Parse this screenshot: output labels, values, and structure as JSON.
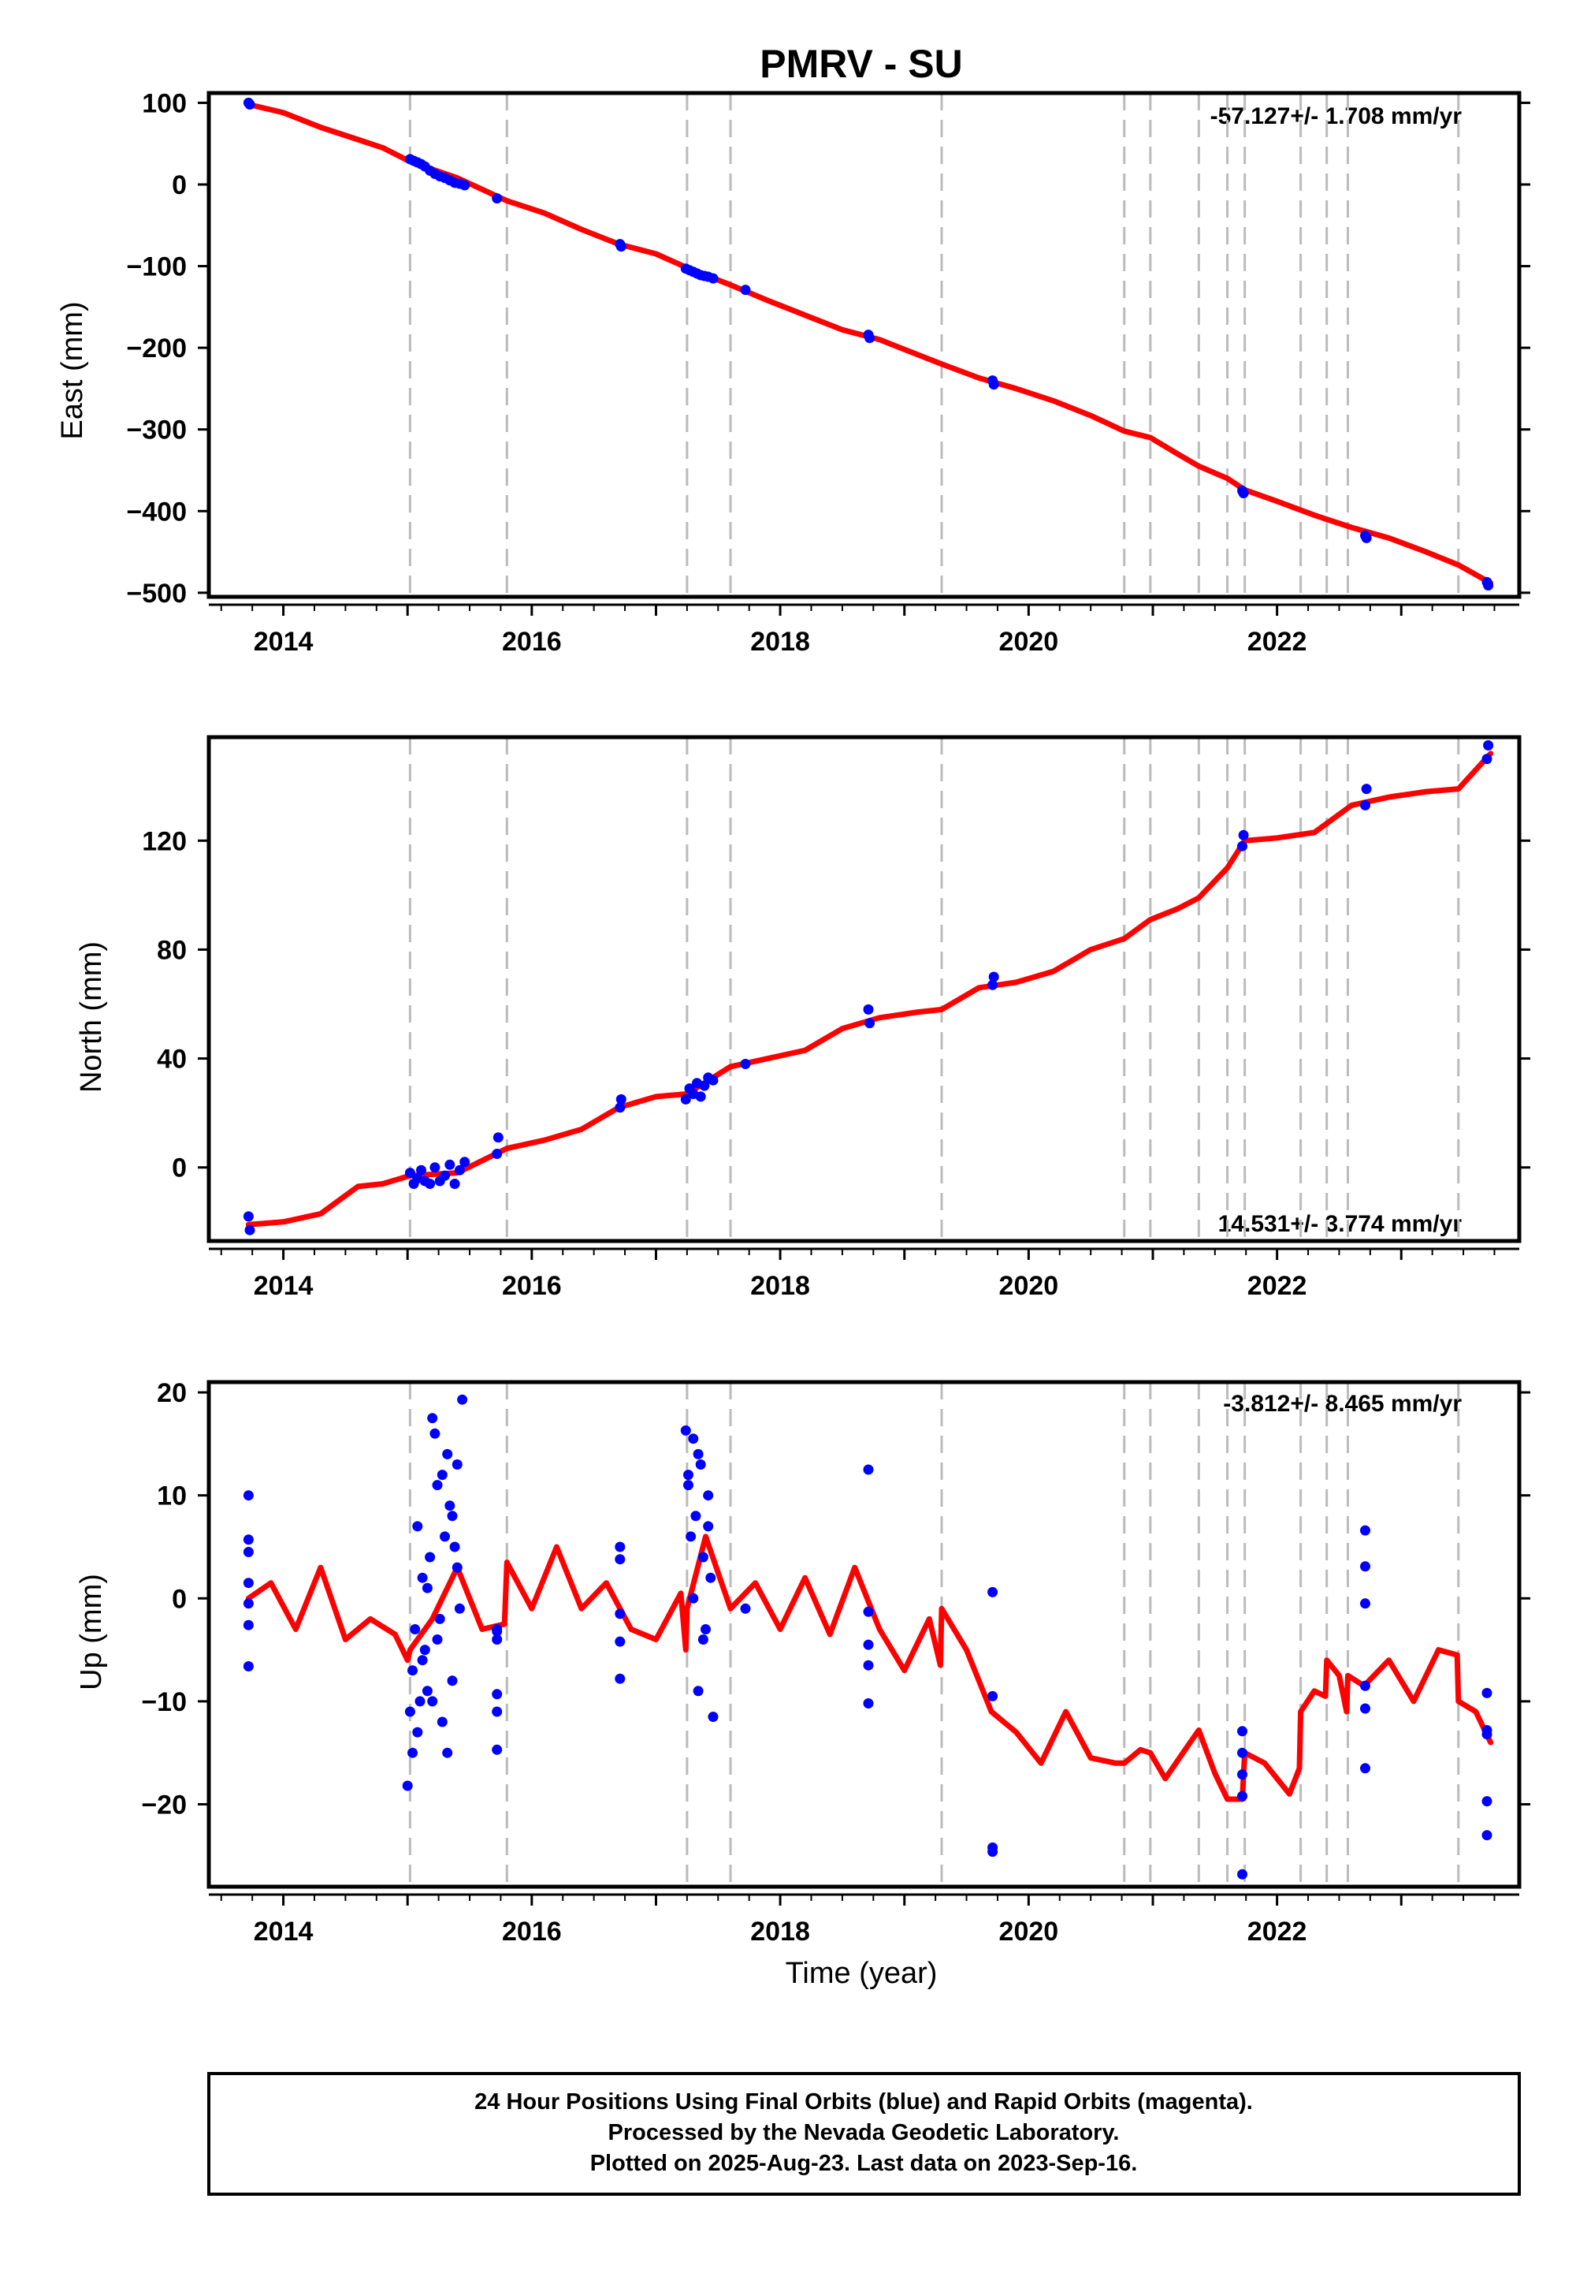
{
  "title": "PMRV - SU",
  "colors": {
    "final_orbits": "#0000ff",
    "model_fit": "#ff0000",
    "equipment_change": "#bbbbbb",
    "frame": "#000000"
  },
  "footer": {
    "line1": "24 Hour Positions Using Final Orbits (blue) and Rapid Orbits (magenta).",
    "line2": "Processed by the Nevada Geodetic Laboratory.",
    "line3": "Plotted on 2025-Aug-23. Last data on 2023-Sep-16."
  },
  "chart_data": [
    {
      "type": "scatter",
      "panel": "east",
      "ylabel": "East (mm)",
      "xlabel": "",
      "rate_text": "-57.127+/- 1.708 mm/yr",
      "rate_position": "top-right",
      "xlim": [
        2013.4,
        2023.95
      ],
      "ylim": [
        -505,
        112
      ],
      "yticks": [
        100,
        0,
        -100,
        -200,
        -300,
        -400,
        -500
      ],
      "yticklabels": [
        "100",
        "0",
        "−100",
        "−200",
        "−300",
        "−400",
        "−500"
      ],
      "xticks": [
        2014,
        2016,
        2018,
        2020,
        2022
      ],
      "xticklabels": [
        "2014",
        "2016",
        "2018",
        "2020",
        "2022"
      ],
      "event_lines": [
        2015.02,
        2015.8,
        2017.25,
        2017.6,
        2019.3,
        2020.77,
        2020.98,
        2021.37,
        2021.6,
        2021.74,
        2022.19,
        2022.4,
        2022.57,
        2023.46
      ],
      "series": [
        {
          "role": "observations",
          "x": [
            2013.72,
            2013.73,
            2015.02,
            2015.05,
            2015.08,
            2015.11,
            2015.14,
            2015.18,
            2015.22,
            2015.26,
            2015.3,
            2015.34,
            2015.38,
            2015.42,
            2015.46,
            2015.72,
            2016.71,
            2016.72,
            2017.24,
            2017.27,
            2017.3,
            2017.33,
            2017.36,
            2017.39,
            2017.42,
            2017.46,
            2017.72,
            2018.71,
            2018.72,
            2019.71,
            2019.72,
            2021.72,
            2021.73,
            2022.71,
            2022.72,
            2023.69,
            2023.7
          ],
          "y": [
            100,
            98,
            31,
            29,
            27,
            25,
            22,
            17,
            13,
            10,
            8,
            5,
            2,
            1,
            -1,
            -17,
            -73,
            -76,
            -103,
            -105,
            -107,
            -109,
            -111,
            -112,
            -113,
            -115,
            -129,
            -184,
            -188,
            -240,
            -245,
            -375,
            -378,
            -430,
            -433,
            -487,
            -491
          ]
        },
        {
          "role": "model",
          "x": [
            2013.72,
            2014.0,
            2014.3,
            2014.6,
            2014.8,
            2015.02,
            2015.4,
            2015.8,
            2016.1,
            2016.4,
            2016.7,
            2017.0,
            2017.25,
            2017.6,
            2017.9,
            2018.2,
            2018.5,
            2018.8,
            2019.1,
            2019.3,
            2019.6,
            2019.9,
            2020.2,
            2020.5,
            2020.77,
            2020.98,
            2021.2,
            2021.37,
            2021.6,
            2021.74,
            2022.0,
            2022.3,
            2022.6,
            2022.9,
            2023.2,
            2023.46,
            2023.72
          ],
          "y": [
            98,
            88,
            70,
            55,
            45,
            28,
            8,
            -20,
            -35,
            -55,
            -73,
            -85,
            -102,
            -123,
            -142,
            -160,
            -178,
            -190,
            -208,
            -220,
            -237,
            -250,
            -265,
            -283,
            -302,
            -310,
            -330,
            -345,
            -360,
            -374,
            -388,
            -405,
            -420,
            -433,
            -450,
            -466,
            -488
          ]
        }
      ]
    },
    {
      "type": "scatter",
      "panel": "north",
      "ylabel": "North (mm)",
      "xlabel": "",
      "rate_text": "14.531+/- 3.774 mm/yr",
      "rate_position": "bottom-right",
      "xlim": [
        2013.4,
        2023.95
      ],
      "ylim": [
        -27,
        158
      ],
      "yticks": [
        0,
        40,
        80,
        120
      ],
      "yticklabels": [
        "0",
        "40",
        "80",
        "120"
      ],
      "xticks": [
        2014,
        2016,
        2018,
        2020,
        2022
      ],
      "xticklabels": [
        "2014",
        "2016",
        "2018",
        "2020",
        "2022"
      ],
      "event_lines": [
        2015.02,
        2015.8,
        2017.25,
        2017.6,
        2019.3,
        2020.77,
        2020.98,
        2021.37,
        2021.6,
        2021.74,
        2022.19,
        2022.4,
        2022.57,
        2023.46
      ],
      "series": [
        {
          "role": "observations",
          "x": [
            2013.72,
            2013.73,
            2015.02,
            2015.05,
            2015.08,
            2015.11,
            2015.14,
            2015.18,
            2015.22,
            2015.26,
            2015.3,
            2015.34,
            2015.38,
            2015.42,
            2015.46,
            2015.72,
            2015.73,
            2016.71,
            2016.72,
            2017.24,
            2017.27,
            2017.3,
            2017.33,
            2017.36,
            2017.39,
            2017.42,
            2017.46,
            2017.72,
            2018.71,
            2018.72,
            2019.71,
            2019.72,
            2021.72,
            2021.73,
            2022.71,
            2022.72,
            2023.69,
            2023.7
          ],
          "y": [
            -18,
            -23,
            -2,
            -6,
            -4,
            -1,
            -5,
            -6,
            0,
            -5,
            -3,
            1,
            -6,
            -1,
            2,
            5,
            11,
            22,
            25,
            25,
            29,
            27,
            31,
            26,
            30,
            33,
            32,
            38,
            58,
            53,
            67,
            70,
            118,
            122,
            133,
            139,
            150,
            155
          ]
        },
        {
          "role": "model",
          "x": [
            2013.72,
            2014.0,
            2014.3,
            2014.6,
            2014.8,
            2015.02,
            2015.4,
            2015.8,
            2016.1,
            2016.4,
            2016.7,
            2017.0,
            2017.25,
            2017.6,
            2017.9,
            2018.2,
            2018.5,
            2018.8,
            2019.1,
            2019.3,
            2019.6,
            2019.9,
            2020.2,
            2020.5,
            2020.77,
            2020.98,
            2021.2,
            2021.37,
            2021.6,
            2021.74,
            2022.0,
            2022.3,
            2022.6,
            2022.9,
            2023.2,
            2023.46,
            2023.72
          ],
          "y": [
            -21,
            -20,
            -17,
            -7,
            -6,
            -3,
            -2,
            7,
            10,
            14,
            22,
            26,
            27,
            37,
            40,
            43,
            51,
            55,
            57,
            58,
            66,
            68,
            72,
            80,
            84,
            91,
            95,
            99,
            110,
            120,
            121,
            123,
            133,
            136,
            138,
            139,
            152
          ]
        }
      ]
    },
    {
      "type": "scatter",
      "panel": "up",
      "ylabel": "Up (mm)",
      "xlabel": "Time (year)",
      "rate_text": "-3.812+/- 8.465 mm/yr",
      "rate_position": "top-right",
      "xlim": [
        2013.4,
        2023.95
      ],
      "ylim": [
        -28,
        21
      ],
      "yticks": [
        20,
        10,
        0,
        -10,
        -20
      ],
      "yticklabels": [
        "20",
        "10",
        "0",
        "−10",
        "−20"
      ],
      "xticks": [
        2014,
        2016,
        2018,
        2020,
        2022
      ],
      "xticklabels": [
        "2014",
        "2016",
        "2018",
        "2020",
        "2022"
      ],
      "event_lines": [
        2015.02,
        2015.8,
        2017.25,
        2017.6,
        2019.3,
        2020.77,
        2020.98,
        2021.37,
        2021.6,
        2021.74,
        2022.19,
        2022.4,
        2022.57,
        2023.46
      ],
      "series": [
        {
          "role": "observations",
          "x": [
            2013.72,
            2013.72,
            2013.72,
            2013.72,
            2013.72,
            2013.72,
            2013.72,
            2015.0,
            2015.02,
            2015.04,
            2015.06,
            2015.08,
            2015.1,
            2015.12,
            2015.14,
            2015.16,
            2015.18,
            2015.2,
            2015.22,
            2015.24,
            2015.26,
            2015.28,
            2015.3,
            2015.32,
            2015.34,
            2015.36,
            2015.38,
            2015.4,
            2015.42,
            2015.44,
            2015.04,
            2015.08,
            2015.12,
            2015.16,
            2015.2,
            2015.24,
            2015.28,
            2015.32,
            2015.36,
            2015.4,
            2015.72,
            2015.72,
            2015.72,
            2015.72,
            2015.72,
            2015.72,
            2016.71,
            2016.71,
            2016.71,
            2016.71,
            2016.71,
            2017.24,
            2017.26,
            2017.28,
            2017.3,
            2017.32,
            2017.34,
            2017.36,
            2017.38,
            2017.4,
            2017.42,
            2017.44,
            2017.46,
            2017.26,
            2017.3,
            2017.34,
            2017.38,
            2017.42,
            2017.72,
            2018.71,
            2018.71,
            2018.71,
            2018.71,
            2018.71,
            2019.71,
            2019.71,
            2019.71,
            2019.71,
            2021.72,
            2021.72,
            2021.72,
            2021.72,
            2021.72,
            2022.71,
            2022.71,
            2022.71,
            2022.71,
            2022.71,
            2022.71,
            2023.69,
            2023.69,
            2023.69,
            2023.69,
            2023.69
          ],
          "y": [
            10,
            5.7,
            4.5,
            1.5,
            -0.5,
            -2.6,
            -6.6,
            -18.2,
            -11,
            -7,
            -3,
            7,
            -10,
            2,
            -5,
            -9,
            4,
            17.5,
            16,
            11,
            -2,
            12,
            6,
            14,
            9,
            8,
            5,
            13,
            -1,
            19.3,
            -15,
            -13,
            -6,
            1,
            -10,
            -4,
            -12,
            -15,
            -8,
            3,
            -3,
            -4,
            -9.3,
            -11,
            -14.7,
            -3.2,
            5,
            3.8,
            -1.5,
            -4.2,
            -7.8,
            16.3,
            12,
            6,
            15.5,
            8,
            -9,
            13,
            4,
            -3,
            10,
            2,
            -11.5,
            11,
            0,
            14,
            -4,
            7,
            -1,
            12.5,
            -1.3,
            -4.5,
            -6.5,
            -10.2,
            0.6,
            -9.5,
            -24.2,
            -24.6,
            -17.1,
            -15,
            -12.9,
            -19.2,
            -26.8,
            6.6,
            3.1,
            -0.5,
            -8.5,
            -10.7,
            -16.5,
            -9.2,
            -12.8,
            -13.2,
            -19.7,
            -23
          ]
        },
        {
          "role": "model",
          "x": [
            2013.72,
            2013.9,
            2014.1,
            2014.3,
            2014.5,
            2014.7,
            2014.9,
            2015.0,
            2015.02,
            2015.2,
            2015.4,
            2015.6,
            2015.78,
            2015.8,
            2016.0,
            2016.2,
            2016.4,
            2016.6,
            2016.8,
            2017.0,
            2017.2,
            2017.24,
            2017.25,
            2017.4,
            2017.6,
            2017.8,
            2018.0,
            2018.2,
            2018.4,
            2018.6,
            2018.8,
            2019.0,
            2019.2,
            2019.29,
            2019.3,
            2019.5,
            2019.7,
            2019.9,
            2020.1,
            2020.3,
            2020.5,
            2020.7,
            2020.77,
            2020.9,
            2020.98,
            2021.1,
            2021.3,
            2021.37,
            2021.5,
            2021.6,
            2021.72,
            2021.74,
            2021.9,
            2022.1,
            2022.18,
            2022.19,
            2022.3,
            2022.39,
            2022.4,
            2022.5,
            2022.56,
            2022.57,
            2022.7,
            2022.9,
            2023.1,
            2023.3,
            2023.45,
            2023.46,
            2023.6,
            2023.72
          ],
          "y": [
            0,
            1.5,
            -3,
            3,
            -4,
            -2,
            -3.5,
            -6,
            -5,
            -2,
            3,
            -3,
            -2.5,
            3.5,
            -1,
            5,
            -1,
            1.5,
            -3,
            -4,
            0.5,
            -5,
            -1,
            6,
            -1,
            1.5,
            -3,
            2,
            -3.5,
            3,
            -3,
            -7,
            -2,
            -6.5,
            -1,
            -5,
            -11,
            -13,
            -16,
            -11,
            -15.5,
            -16,
            -16,
            -14.7,
            -15,
            -17.5,
            -14,
            -12.8,
            -17,
            -19.5,
            -19.5,
            -15,
            -16,
            -19,
            -16.5,
            -11,
            -9,
            -9.5,
            -6,
            -7.5,
            -11,
            -7.5,
            -8.5,
            -6,
            -10,
            -5,
            -5.5,
            -10,
            -11,
            -14
          ]
        }
      ]
    }
  ]
}
